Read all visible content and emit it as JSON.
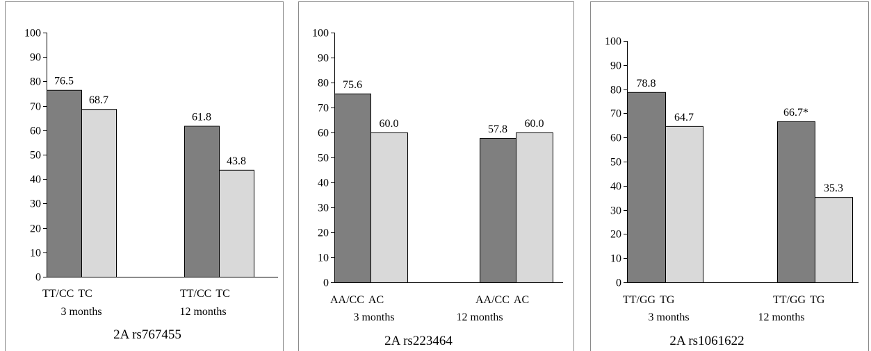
{
  "chart_data": [
    {
      "type": "bar",
      "title": "2A    rs767455",
      "ylim": [
        0,
        100
      ],
      "yticks": [
        "0",
        "10",
        "20",
        "30",
        "40",
        "50",
        "60",
        "70",
        "80",
        "90",
        "100"
      ],
      "groups": [
        {
          "label": "3 months",
          "bars": [
            {
              "category": "TT/CC",
              "value": 76.5,
              "label": "76.5",
              "color": "#7f7f7f"
            },
            {
              "category": "TC",
              "value": 68.7,
              "label": "68.7",
              "color": "#d9d9d9"
            }
          ]
        },
        {
          "label": "12 months",
          "bars": [
            {
              "category": "TT/CC",
              "value": 61.8,
              "label": "61.8",
              "color": "#7f7f7f"
            },
            {
              "category": "TC",
              "value": 43.8,
              "label": "43.8",
              "color": "#d9d9d9"
            }
          ]
        }
      ]
    },
    {
      "type": "bar",
      "title": "2A    rs223464",
      "ylim": [
        0,
        100
      ],
      "yticks": [
        "0",
        "10",
        "20",
        "30",
        "40",
        "50",
        "60",
        "70",
        "80",
        "90",
        "100"
      ],
      "groups": [
        {
          "label": "3 months",
          "bars": [
            {
              "category": "AA/CC",
              "value": 75.6,
              "label": "75.6",
              "color": "#7f7f7f"
            },
            {
              "category": "AC",
              "value": 60.0,
              "label": "60.0",
              "color": "#d9d9d9"
            }
          ]
        },
        {
          "label": "12 months",
          "bars": [
            {
              "category": "AA/CC",
              "value": 57.8,
              "label": "57.8",
              "color": "#7f7f7f"
            },
            {
              "category": "AC",
              "value": 60.0,
              "label": "60.0",
              "color": "#d9d9d9"
            }
          ]
        }
      ]
    },
    {
      "type": "bar",
      "title": "2A    rs1061622",
      "ylim": [
        0,
        100
      ],
      "yticks": [
        "0",
        "10",
        "20",
        "30",
        "40",
        "50",
        "60",
        "70",
        "80",
        "90",
        "100"
      ],
      "groups": [
        {
          "label": "3 months",
          "bars": [
            {
              "category": "TT/GG",
              "value": 78.8,
              "label": "78.8",
              "color": "#7f7f7f"
            },
            {
              "category": "TG",
              "value": 64.7,
              "label": "64.7",
              "color": "#d9d9d9"
            }
          ]
        },
        {
          "label": "12 months",
          "bars": [
            {
              "category": "TT/GG",
              "value": 66.7,
              "label": "66.7*",
              "color": "#7f7f7f"
            },
            {
              "category": "TG",
              "value": 35.3,
              "label": "35.3",
              "color": "#d9d9d9"
            }
          ]
        }
      ]
    }
  ]
}
